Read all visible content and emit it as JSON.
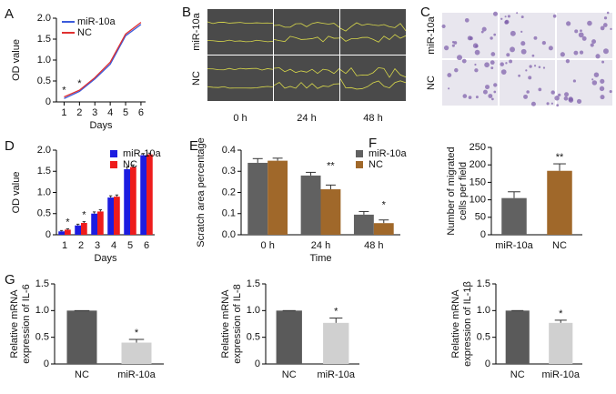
{
  "chart_data": [
    {
      "type": "line",
      "panel": "A",
      "x": [
        1,
        2,
        3,
        4,
        5,
        6
      ],
      "x_label": "Days",
      "y_label": [
        "OD value"
      ],
      "xlim": [
        0.5,
        6.3
      ],
      "xticks": [
        1,
        2,
        3,
        4,
        5,
        6
      ],
      "ylim": [
        0,
        2
      ],
      "yticks": [
        0,
        0.5,
        {
          "value": 1,
          "label": "1.0"
        },
        1.5,
        {
          "value": 2,
          "label": "2.0"
        }
      ],
      "legend": "upper left",
      "series": [
        {
          "name": "miR-10a",
          "color": "#3b5bdb",
          "values": [
            0.08,
            0.25,
            0.55,
            0.9,
            1.58,
            1.85
          ]
        },
        {
          "name": "NC",
          "color": "#e03131",
          "values": [
            0.12,
            0.28,
            0.58,
            0.95,
            1.62,
            1.9
          ]
        }
      ],
      "annotations": [
        {
          "text": "*",
          "category": 0
        },
        {
          "text": "*",
          "category": 1
        }
      ]
    },
    {
      "type": "bar",
      "panel": "D",
      "categories": [
        "1",
        "2",
        "3",
        "4",
        "5",
        "6"
      ],
      "x_label": "Days",
      "y_label": [
        "OD value"
      ],
      "ylim": [
        0,
        2
      ],
      "yticks": [
        0,
        0.5,
        {
          "value": 1,
          "label": "1.0"
        },
        1.5,
        {
          "value": 2,
          "label": "2.0"
        }
      ],
      "legend": "upper right",
      "series": [
        {
          "name": "miR-10a",
          "color": "#1c1ce0",
          "values": [
            0.08,
            0.22,
            0.5,
            0.88,
            1.55,
            1.88
          ],
          "errors": [
            0.02,
            0.03,
            0.04,
            0.04,
            0.05,
            0.04
          ]
        },
        {
          "name": "NC",
          "color": "#ee1c1c",
          "values": [
            0.12,
            0.28,
            0.55,
            0.9,
            1.6,
            1.9
          ],
          "errors": [
            0.02,
            0.03,
            0.04,
            0.04,
            0.05,
            0.03
          ]
        }
      ],
      "annotations": [
        {
          "text": "*",
          "category": 0
        },
        {
          "text": "*",
          "category": 1
        }
      ]
    },
    {
      "type": "bar",
      "panel": "E",
      "categories": [
        "0 h",
        "24 h",
        "48 h"
      ],
      "x_label": "Time",
      "y_label": [
        "Scratch area percentage"
      ],
      "ylim": [
        0,
        0.4
      ],
      "yticks": [
        {
          "value": 0,
          "label": "0.0"
        },
        0.1,
        0.2,
        0.3,
        0.4
      ],
      "legend": "upper right",
      "series": [
        {
          "name": "miR-10a",
          "color": "#616161",
          "values": [
            0.34,
            0.28,
            0.095
          ],
          "errors": [
            0.02,
            0.015,
            0.015
          ]
        },
        {
          "name": "NC",
          "color": "#a0682a",
          "values": [
            0.35,
            0.215,
            0.055
          ],
          "errors": [
            0.012,
            0.02,
            0.015
          ]
        }
      ],
      "annotations": [
        {
          "text": "**",
          "category": 1
        },
        {
          "text": "*",
          "category": 2
        }
      ]
    },
    {
      "type": "bar",
      "panel": "F",
      "categories": [
        "miR-10a",
        "NC"
      ],
      "y_label": [
        "Number of migrated",
        "cells per field"
      ],
      "ylim": [
        0,
        250
      ],
      "yticks": [
        0,
        50,
        100,
        150,
        200,
        250
      ],
      "values": [
        105,
        183
      ],
      "errors": [
        18,
        20
      ],
      "colors": [
        "#616161",
        "#a0682a"
      ],
      "annotations": [
        {
          "text": "**",
          "category": 1
        }
      ]
    },
    {
      "type": "bar",
      "panel": "G",
      "categories": [
        "NC",
        "miR-10a"
      ],
      "y_label": [
        "Relative mRNA",
        "expression of IL-6"
      ],
      "ylim": [
        0,
        1.5
      ],
      "yticks": [
        0,
        0.5,
        {
          "value": 1,
          "label": "1.0"
        },
        1.5
      ],
      "values": [
        1.0,
        0.4
      ],
      "errors": [
        0,
        0.06
      ],
      "colors": [
        "#5a5a5a",
        "#d0d0d0"
      ],
      "annotations": [
        {
          "text": "*",
          "category": 1
        }
      ]
    },
    {
      "type": "bar",
      "categories": [
        "NC",
        "miR-10a"
      ],
      "y_label": [
        "Relative mRNA",
        "expression of IL-8"
      ],
      "ylim": [
        0,
        1.5
      ],
      "yticks": [
        0,
        0.5,
        {
          "value": 1,
          "label": "1.0"
        },
        1.5
      ],
      "values": [
        1.0,
        0.77
      ],
      "errors": [
        0,
        0.09
      ],
      "colors": [
        "#5a5a5a",
        "#d0d0d0"
      ],
      "annotations": [
        {
          "text": "*",
          "category": 1
        }
      ]
    },
    {
      "type": "bar",
      "categories": [
        "NC",
        "miR-10a"
      ],
      "y_label": [
        "Relative mRNA",
        "expression of IL-1β"
      ],
      "ylim": [
        0,
        1.5
      ],
      "yticks": [
        0,
        0.5,
        {
          "value": 1,
          "label": "1.0"
        },
        1.5
      ],
      "values": [
        1.0,
        0.77
      ],
      "errors": [
        0,
        0.05
      ],
      "colors": [
        "#5a5a5a",
        "#d0d0d0"
      ],
      "annotations": [
        {
          "text": "*",
          "category": 1
        }
      ]
    }
  ],
  "micrographs": [
    {
      "panel": "B",
      "row_labels": [
        "miR-10a",
        "NC"
      ],
      "col_labels": [
        "0 h",
        "24 h",
        "48 h"
      ]
    },
    {
      "panel": "C",
      "row_labels": [
        "miR-10a",
        "NC"
      ]
    }
  ]
}
